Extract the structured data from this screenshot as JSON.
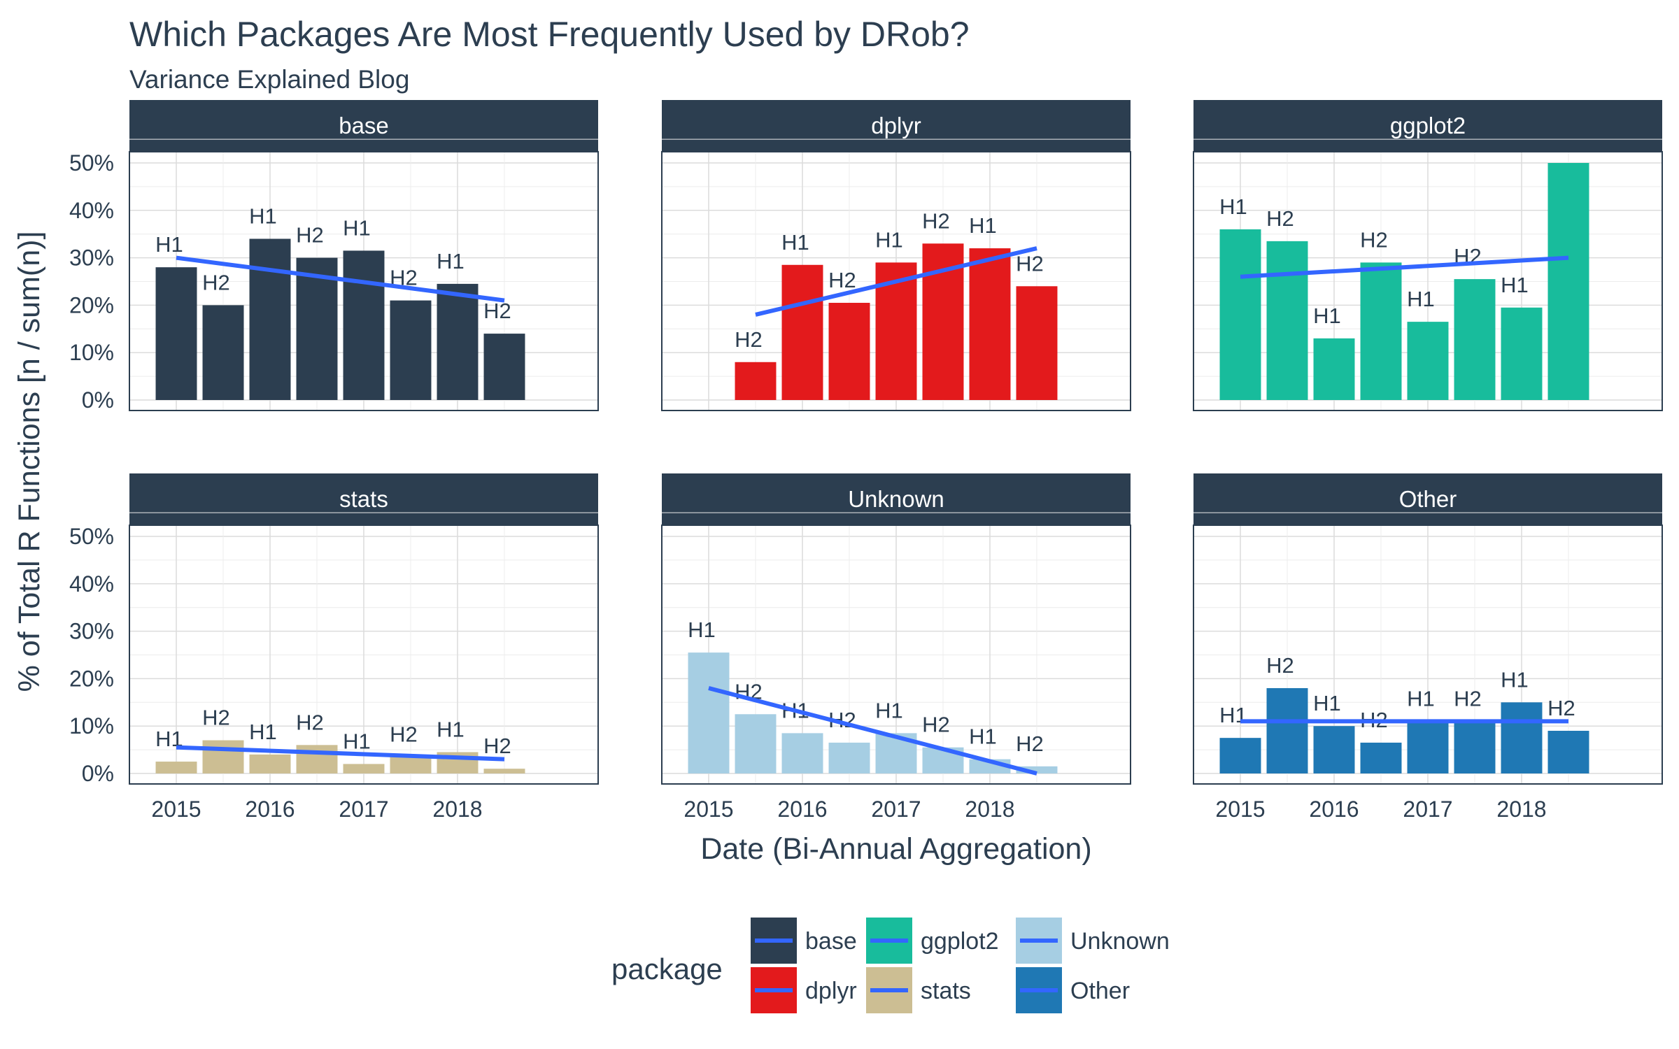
{
  "chart_data": {
    "type": "bar",
    "title": "Which Packages Are Most Frequently Used by DRob?",
    "subtitle": "Variance Explained Blog",
    "xlabel": "Date (Bi-Annual Aggregation)",
    "ylabel": "% of Total R Functions [n / sum(n)]",
    "x_ticks": [
      "2015",
      "2016",
      "2017",
      "2018"
    ],
    "y_ticks": [
      "0%",
      "10%",
      "20%",
      "30%",
      "40%",
      "50%"
    ],
    "ylim": [
      0,
      0.5
    ],
    "grid": true,
    "legend": {
      "title": "package",
      "position": "bottom",
      "trend_line_color": "#3366ff"
    },
    "facets": [
      {
        "name": "base",
        "color": "#2c3e50",
        "dates": [
          "2015 H1",
          "2015 H2",
          "2016 H1",
          "2016 H2",
          "2017 H1",
          "2017 H2",
          "2018 H1",
          "2018 H2"
        ],
        "labels": [
          "H1",
          "H2",
          "H1",
          "H2",
          "H1",
          "H2",
          "H1",
          "H2"
        ],
        "values": [
          0.28,
          0.2,
          0.34,
          0.3,
          0.315,
          0.21,
          0.245,
          0.14
        ],
        "trend": [
          0.3,
          0.21
        ]
      },
      {
        "name": "dplyr",
        "color": "#e31a1c",
        "dates": [
          "2015 H2",
          "2016 H1",
          "2016 H2",
          "2017 H1",
          "2017 H2",
          "2018 H1",
          "2018 H2"
        ],
        "labels": [
          "H2",
          "H1",
          "H2",
          "H1",
          "H2",
          "H1",
          "H2"
        ],
        "values": [
          0.08,
          0.285,
          0.205,
          0.29,
          0.33,
          0.32,
          0.24
        ],
        "trend": [
          0.18,
          0.32
        ]
      },
      {
        "name": "ggplot2",
        "color": "#18bc9c",
        "dates": [
          "2015 H1",
          "2015 H2",
          "2016 H1",
          "2016 H2",
          "2017 H1",
          "2017 H2",
          "2018 H1",
          "2018 H2"
        ],
        "labels": [
          "H1",
          "H2",
          "H1",
          "H2",
          "H1",
          "H2",
          "H1",
          ""
        ],
        "values": [
          0.36,
          0.335,
          0.13,
          0.29,
          0.165,
          0.255,
          0.195,
          0.5
        ],
        "trend": [
          0.26,
          0.3
        ]
      },
      {
        "name": "stats",
        "color": "#ccbe93",
        "dates": [
          "2015 H1",
          "2015 H2",
          "2016 H1",
          "2016 H2",
          "2017 H1",
          "2017 H2",
          "2018 H1",
          "2018 H2"
        ],
        "labels": [
          "H1",
          "H2",
          "H1",
          "H2",
          "H1",
          "H2",
          "H1",
          "H2"
        ],
        "values": [
          0.025,
          0.07,
          0.04,
          0.06,
          0.02,
          0.035,
          0.045,
          0.01
        ],
        "trend": [
          0.055,
          0.03
        ]
      },
      {
        "name": "Unknown",
        "color": "#a6cee3",
        "dates": [
          "2015 H1",
          "2015 H2",
          "2016 H1",
          "2016 H2",
          "2017 H1",
          "2017 H2",
          "2018 H1",
          "2018 H2"
        ],
        "labels": [
          "H1",
          "H2",
          "H1",
          "H2",
          "H1",
          "H2",
          "H1",
          "H2"
        ],
        "values": [
          0.255,
          0.125,
          0.085,
          0.065,
          0.085,
          0.055,
          0.03,
          0.015
        ],
        "trend": [
          0.18,
          0.0
        ]
      },
      {
        "name": "Other",
        "color": "#1f78b4",
        "dates": [
          "2015 H1",
          "2015 H2",
          "2016 H1",
          "2016 H2",
          "2017 H1",
          "2017 H2",
          "2018 H1",
          "2018 H2"
        ],
        "labels": [
          "H1",
          "H2",
          "H1",
          "H2",
          "H1",
          "H2",
          "H1",
          "H2"
        ],
        "values": [
          0.075,
          0.18,
          0.1,
          0.065,
          0.11,
          0.11,
          0.15,
          0.09
        ],
        "trend": [
          0.11,
          0.11
        ]
      }
    ]
  }
}
